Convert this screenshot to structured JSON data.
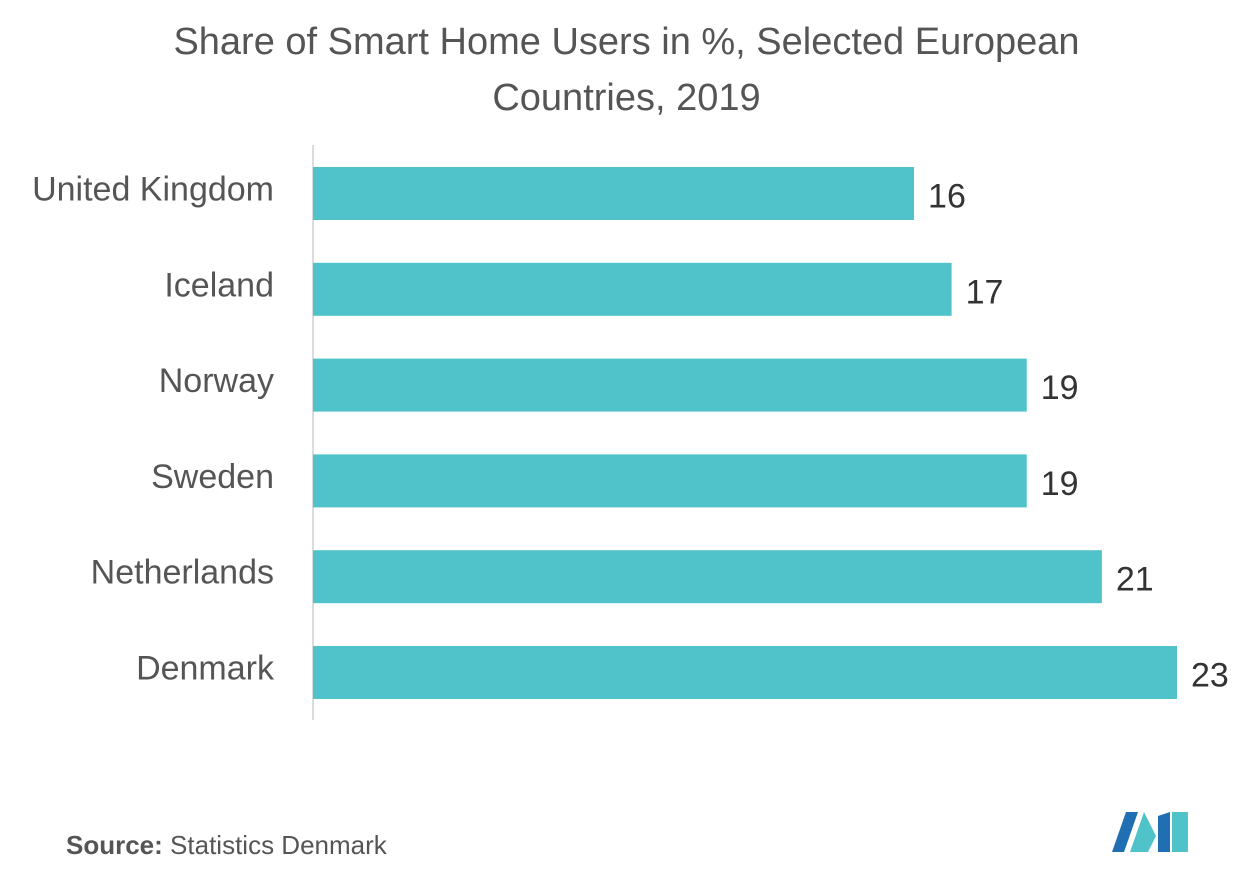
{
  "chart_data": {
    "type": "bar",
    "orientation": "horizontal",
    "title_line1": "Share of Smart Home Users in %, Selected European",
    "title_line2": "Countries, 2019",
    "categories": [
      "United Kingdom",
      "Iceland",
      "Norway",
      "Sweden",
      "Netherlands",
      "Denmark"
    ],
    "values": [
      16,
      17,
      19,
      19,
      21,
      23
    ],
    "data_labels": [
      "16",
      "17",
      "19",
      "19",
      "21",
      "23"
    ],
    "xlim": [
      0,
      23
    ],
    "grid": false,
    "legend": "none",
    "bar_color": "#4fc3c9",
    "axis_color": "#d0d0d0"
  },
  "source": {
    "label": "Source:",
    "text": "Statistics Denmark"
  },
  "logo": {
    "icon": "mordor-intelligence-logo",
    "colors": [
      "#1f6fb2",
      "#4fc3c9"
    ]
  }
}
